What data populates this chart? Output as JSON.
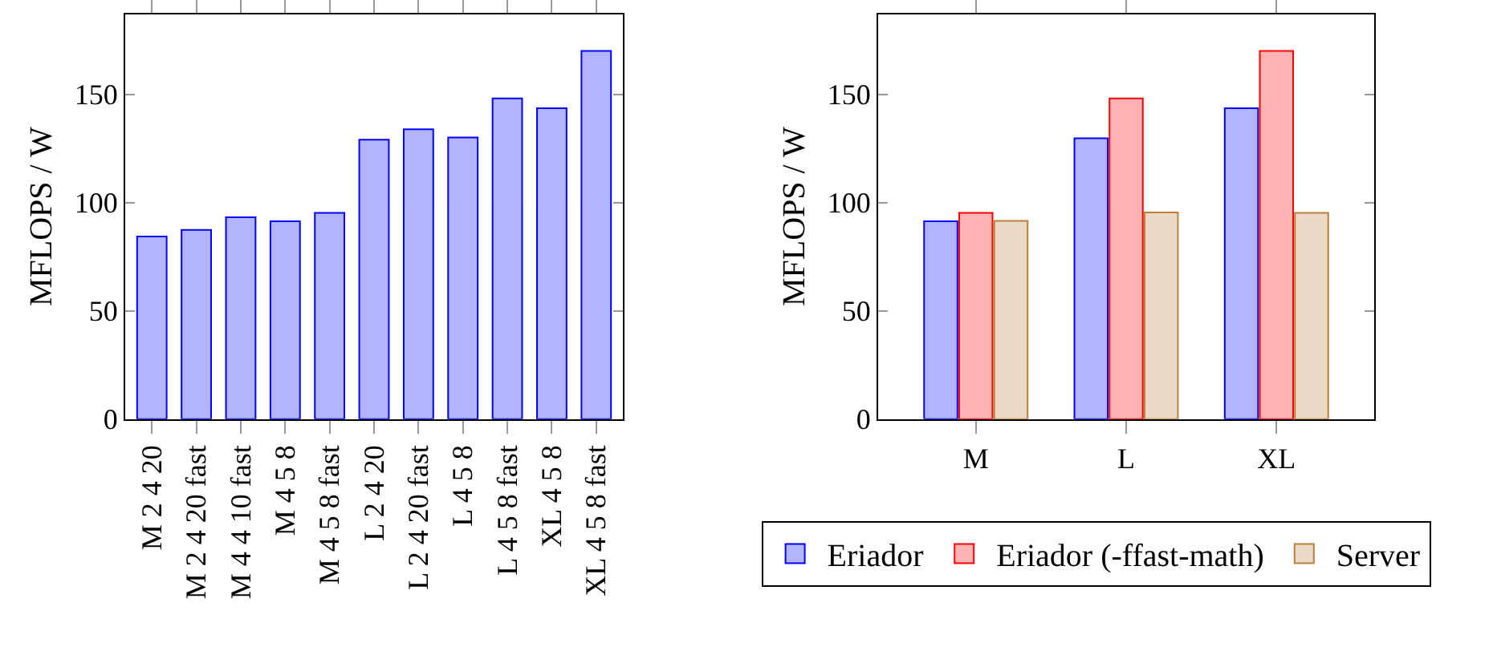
{
  "chart_data": [
    {
      "type": "bar",
      "ylabel": "MFLOPS / W",
      "categories": [
        "M 2 4 20",
        "M 2 4 20 fast",
        "M 4 4 10 fast",
        "M 4 5 8",
        "M 4 5 8 fast",
        "L 2 4 20",
        "L 2 4 20 fast",
        "L 4 5 8",
        "L 4 5 8 fast",
        "XL 4 5 8",
        "XL 4 5 8 fast"
      ],
      "series": [
        {
          "color": "#b3b3ff",
          "values": [
            84.3,
            87.4,
            93.2,
            91.3,
            95.2,
            129.0,
            133.8,
            130.0,
            148.1,
            143.5,
            170.0
          ]
        }
      ],
      "ylim": [
        0,
        187
      ],
      "yticks": [
        0,
        50,
        100,
        150
      ]
    },
    {
      "type": "bar",
      "ylabel": "MFLOPS / W",
      "categories": [
        "M",
        "L",
        "XL"
      ],
      "series": [
        {
          "name": "Eriador",
          "color": "#b3b3ff",
          "values": [
            91.3,
            129.7,
            143.5
          ]
        },
        {
          "name": "Eriador (-ffast-math)",
          "color": "#ffb3b3",
          "values": [
            95.2,
            148.1,
            170.0
          ]
        },
        {
          "name": "Server",
          "color": "#ead9c4",
          "values": [
            91.5,
            95.4,
            95.2
          ]
        }
      ],
      "ylim": [
        0,
        187
      ],
      "yticks": [
        0,
        50,
        100,
        150
      ],
      "legend": "bottom"
    }
  ]
}
